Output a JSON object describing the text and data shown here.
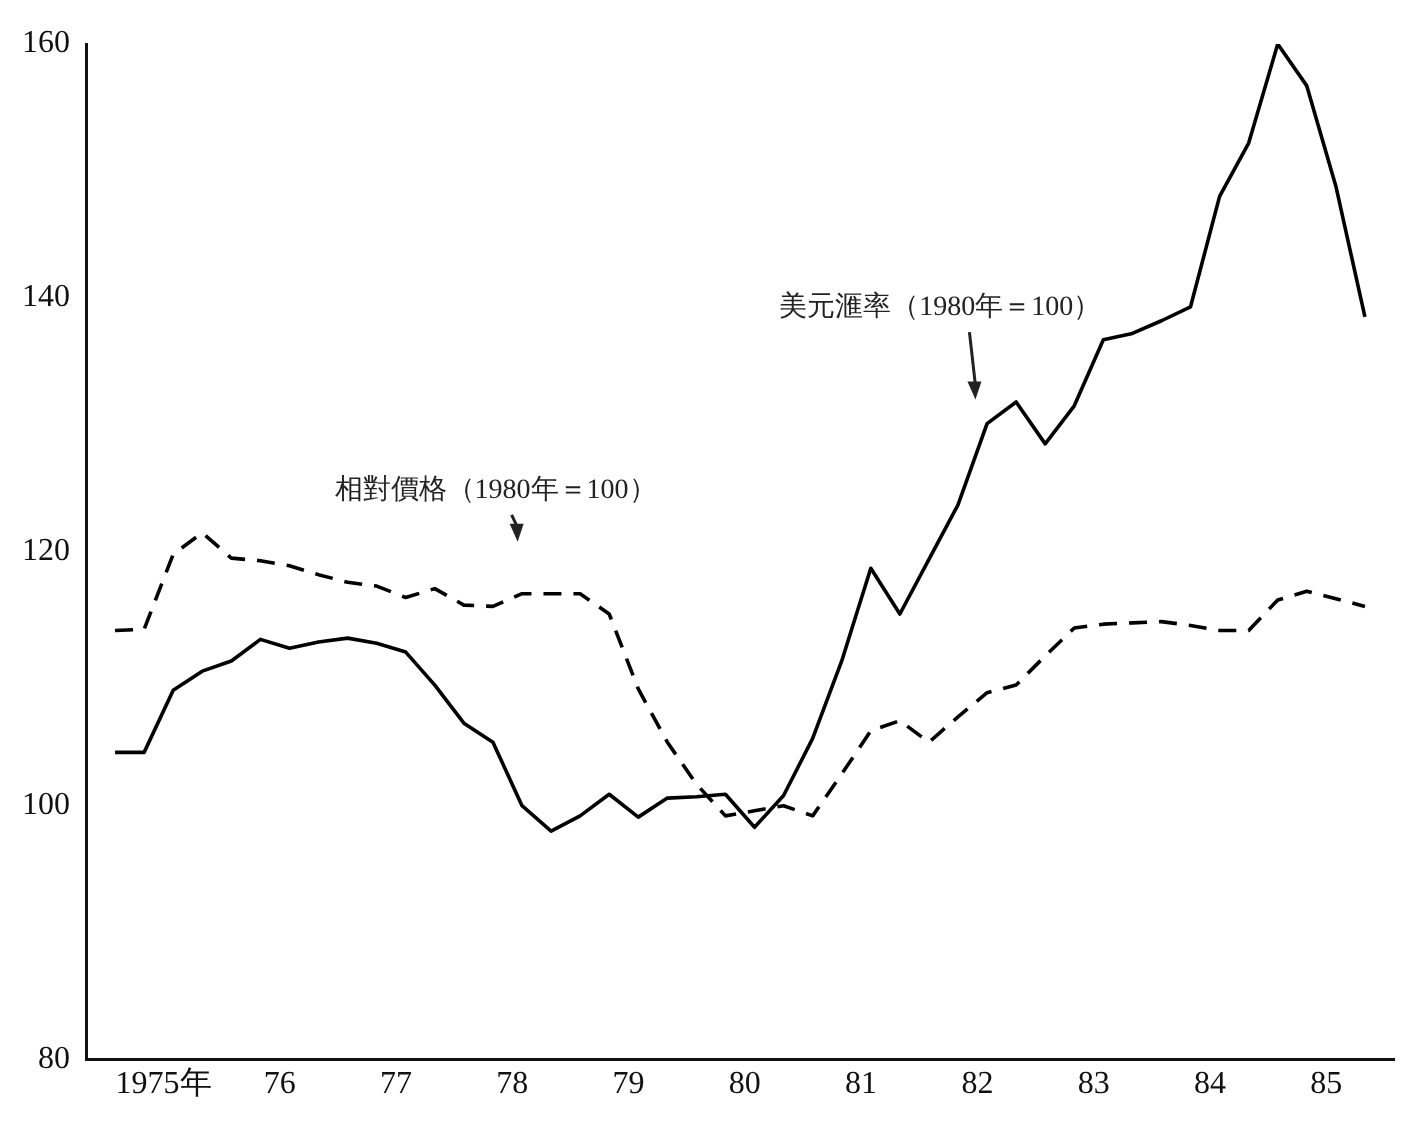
{
  "chart_data": {
    "type": "line",
    "ylim": [
      80,
      160
    ],
    "yticks": [
      80,
      100,
      120,
      140,
      160
    ],
    "xlim": [
      "1974-11",
      "1986-02"
    ],
    "xticks": [
      {
        "value": "1975-07",
        "label": "1975年"
      },
      {
        "value": "1976-07",
        "label": "76"
      },
      {
        "value": "1977-07",
        "label": "77"
      },
      {
        "value": "1978-07",
        "label": "78"
      },
      {
        "value": "1979-07",
        "label": "79"
      },
      {
        "value": "1980-07",
        "label": "80"
      },
      {
        "value": "1981-07",
        "label": "81"
      },
      {
        "value": "1982-07",
        "label": "82"
      },
      {
        "value": "1983-07",
        "label": "83"
      },
      {
        "value": "1984-07",
        "label": "84"
      },
      {
        "value": "1985-07",
        "label": "85"
      }
    ],
    "x": [
      "1975-02",
      "1975-05",
      "1975-08",
      "1975-11",
      "1976-02",
      "1976-05",
      "1976-08",
      "1976-11",
      "1977-02",
      "1977-05",
      "1977-08",
      "1977-11",
      "1978-02",
      "1978-05",
      "1978-08",
      "1978-11",
      "1979-02",
      "1979-05",
      "1979-08",
      "1979-11",
      "1980-02",
      "1980-05",
      "1980-08",
      "1980-11",
      "1981-02",
      "1981-05",
      "1981-08",
      "1981-11",
      "1982-02",
      "1982-05",
      "1982-08",
      "1982-11",
      "1983-02",
      "1983-05",
      "1983-08",
      "1983-11",
      "1984-02",
      "1984-05",
      "1984-08",
      "1984-11",
      "1985-02",
      "1985-05",
      "1985-08",
      "1985-11"
    ],
    "grid": false,
    "legend": false,
    "marker": "none",
    "series": [
      {
        "name": "美元滙率（1980年＝100）",
        "color": "#000000",
        "line_style": "solid",
        "values": [
          104.2,
          104.2,
          109.1,
          110.6,
          111.4,
          113.1,
          112.4,
          112.9,
          113.2,
          112.8,
          112.1,
          109.5,
          106.5,
          105.0,
          100.0,
          98.0,
          99.2,
          100.9,
          99.1,
          100.6,
          100.7,
          100.9,
          98.3,
          100.8,
          105.3,
          111.4,
          118.7,
          115.1,
          119.4,
          123.7,
          130.1,
          131.8,
          128.5,
          131.5,
          136.7,
          137.2,
          138.2,
          139.3,
          148.0,
          152.2,
          160,
          156.7,
          148.8,
          138.5
        ]
      },
      {
        "name": "相對價格（1980年＝100）",
        "color": "#000000",
        "line_style": "dashed",
        "values": [
          113.8,
          113.9,
          119.8,
          121.5,
          119.5,
          119.3,
          118.9,
          118.2,
          117.6,
          117.3,
          116.4,
          117.1,
          115.8,
          115.7,
          116.7,
          116.7,
          116.7,
          115.1,
          109.2,
          105.0,
          101.7,
          99.2,
          99.6,
          100.0,
          99.2,
          102.5,
          105.9,
          106.7,
          105.0,
          107.0,
          108.9,
          109.5,
          111.8,
          114.0,
          114.3,
          114.4,
          114.5,
          114.2,
          113.8,
          113.8,
          116.2,
          116.9,
          116.3,
          115.7
        ]
      }
    ]
  }
}
